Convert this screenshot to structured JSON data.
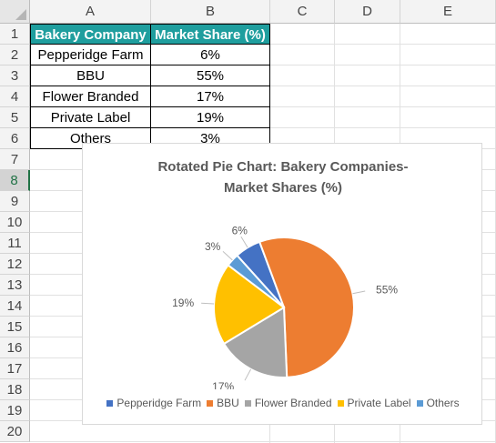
{
  "columns": [
    "A",
    "B",
    "C",
    "D",
    "E"
  ],
  "rows": [
    "1",
    "2",
    "3",
    "4",
    "5",
    "6",
    "7",
    "8",
    "9",
    "10",
    "11",
    "12",
    "13",
    "14",
    "15",
    "16",
    "17",
    "18",
    "19",
    "20"
  ],
  "selected_row": "8",
  "table": {
    "headers": [
      "Bakery Company",
      "Market Share (%)"
    ],
    "rows": [
      [
        "Pepperidge Farm",
        "6%"
      ],
      [
        "BBU",
        "55%"
      ],
      [
        "Flower Branded",
        "17%"
      ],
      [
        "Private Label",
        "19%"
      ],
      [
        "Others",
        "3%"
      ]
    ]
  },
  "chart_data": {
    "type": "pie",
    "title_line1": "Rotated Pie Chart: Bakery Companies-",
    "title_line2": "Market Shares (%)",
    "categories": [
      "Pepperidge Farm",
      "BBU",
      "Flower Branded",
      "Private Label",
      "Others"
    ],
    "values": [
      6,
      55,
      17,
      19,
      3
    ],
    "labels": [
      "6%",
      "55%",
      "17%",
      "19%",
      "3%"
    ],
    "colors": [
      "#4472C4",
      "#ED7D31",
      "#A5A5A5",
      "#FFC000",
      "#5B9BD5"
    ],
    "legend_position": "bottom"
  },
  "colors": {
    "header_fill": "#1f9e9e",
    "excel_green": "#217346"
  }
}
